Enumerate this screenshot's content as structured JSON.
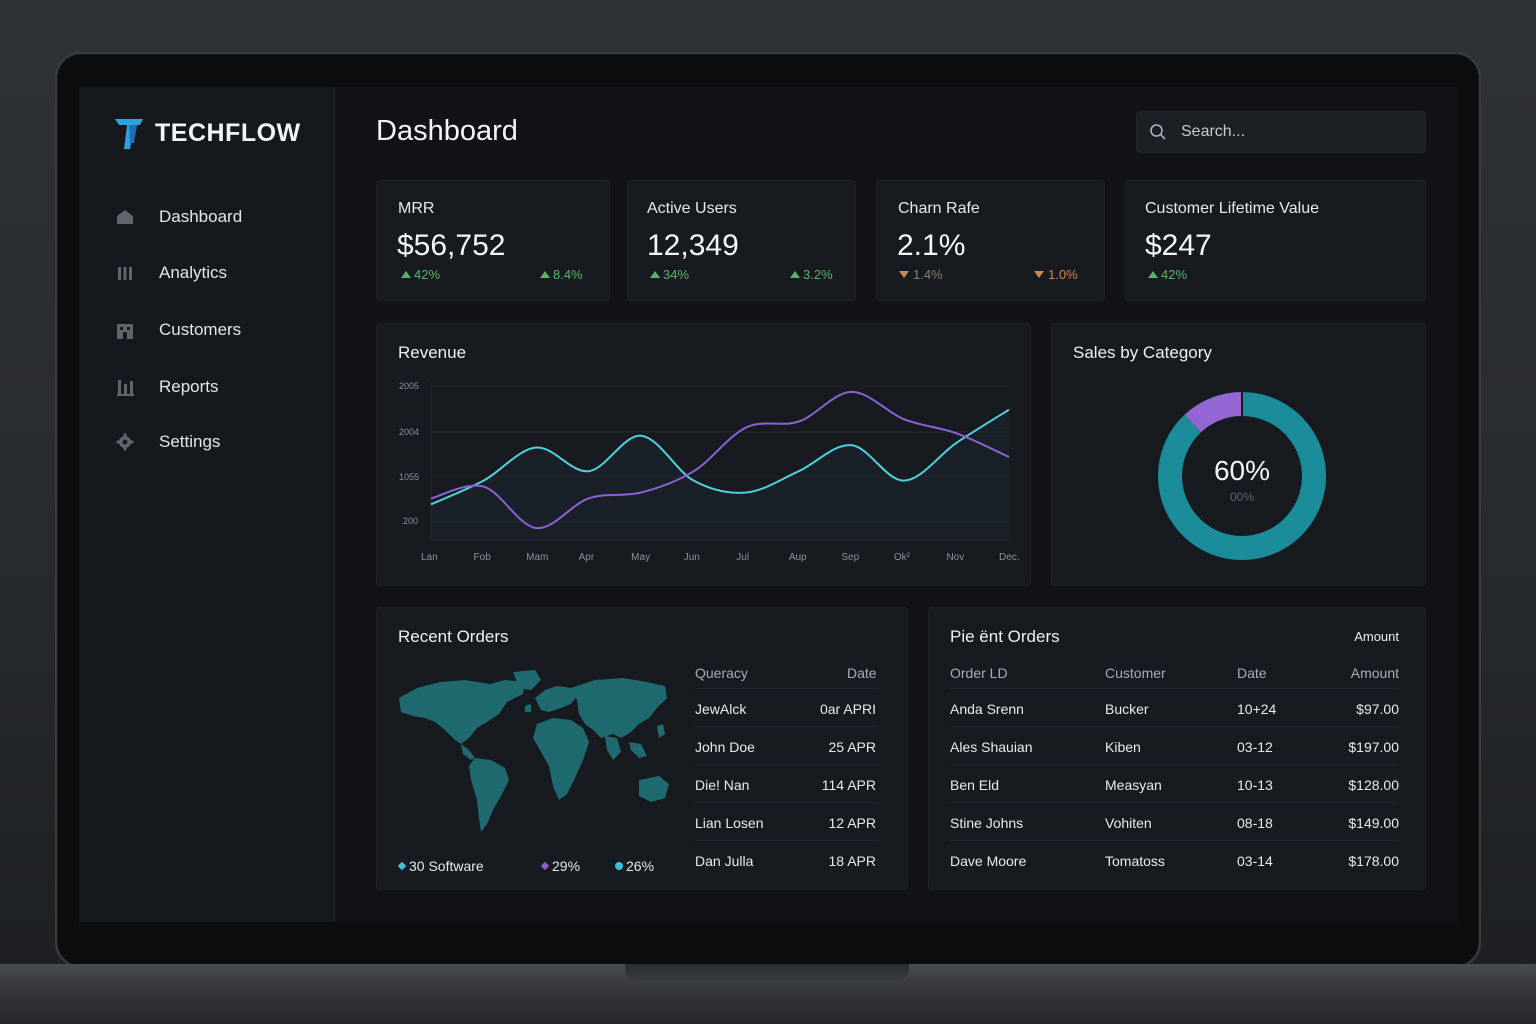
{
  "app": {
    "name": "TECHFLOW"
  },
  "sidebar": {
    "items": [
      {
        "label": "Dashboard",
        "icon": "home-icon"
      },
      {
        "label": "Analytics",
        "icon": "bars-icon"
      },
      {
        "label": "Customers",
        "icon": "building-icon"
      },
      {
        "label": "Reports",
        "icon": "bar-chart-icon"
      },
      {
        "label": "Settings",
        "icon": "gear-icon"
      }
    ]
  },
  "header": {
    "title": "Dashboard",
    "search_placeholder": "Search..."
  },
  "kpis": [
    {
      "label": "MRR",
      "value": "$56,752",
      "delta_left": "42%",
      "delta_right": "8.4%"
    },
    {
      "label": "Active Users",
      "value": "12,349",
      "delta_left": "34%",
      "delta_right": "3.2%"
    },
    {
      "label": "Charn Rafe",
      "value": "2.1%",
      "delta_left": "1.4%",
      "delta_right": "1.0%"
    },
    {
      "label": "Customer Lifetime Value",
      "value": "$247",
      "delta_left": "42%"
    }
  ],
  "revenue": {
    "title": "Revenue"
  },
  "chart_data": [
    {
      "type": "line",
      "title": "Revenue",
      "categories": [
        "Lan",
        "Fob",
        "Mam",
        "Apr",
        "May",
        "Jun",
        "Jul",
        "Aup",
        "Sep",
        "Ok²",
        "Nov",
        "Dec."
      ],
      "ytick_labels": [
        "2005",
        "2004",
        "1055",
        "200"
      ],
      "grid": true,
      "series": [
        {
          "color": "#4fd1de",
          "values": [
            0.2,
            0.4,
            0.68,
            0.48,
            0.78,
            0.4,
            0.3,
            0.48,
            0.7,
            0.4,
            0.72,
            1.0
          ]
        },
        {
          "color": "#8a62d6",
          "values": [
            0.25,
            0.35,
            0.0,
            0.25,
            0.3,
            0.48,
            0.85,
            0.9,
            1.15,
            0.92,
            0.8,
            0.6
          ]
        }
      ]
    },
    {
      "type": "pie",
      "title": "Sales by Category",
      "center_label": "60%",
      "center_sublabel": "00%",
      "slices": [
        {
          "value": 88,
          "color": "#1b8d9a"
        },
        {
          "value": 12,
          "color": "#9466d4"
        }
      ]
    }
  ],
  "recent_orders": {
    "title": "Recent Orders",
    "columns": [
      "Queracy",
      "Date"
    ],
    "rows": [
      [
        "JewAlck",
        "0ar APRI"
      ],
      [
        "John Doe",
        "25 APR"
      ],
      [
        "Die! Nan",
        "114 APR"
      ],
      [
        "Lian Losen",
        "12 APR"
      ],
      [
        "Dan Julla",
        "18 APR"
      ]
    ],
    "legend": [
      {
        "label": "30 Software",
        "color": "#3fc2d6"
      },
      {
        "label": "29%",
        "color": "#8a5fc9"
      },
      {
        "label": "26%",
        "color": "#37c0dc"
      }
    ]
  },
  "pie_orders": {
    "title": "Pie ënt Orders",
    "header_right": "Amount",
    "columns": [
      "Order LD",
      "Customer",
      "Date",
      "Amount"
    ],
    "rows": [
      [
        "Anda Srenn",
        "Bucker",
        "10+24",
        "$97.00"
      ],
      [
        "Ales Shauian",
        "Kiben",
        "03-12",
        "$197.00"
      ],
      [
        "Ben Eld",
        "Measyan",
        "10-13",
        "$128.00"
      ],
      [
        "Stine Johns",
        "Vohiten",
        "08-18",
        "$149.00"
      ],
      [
        "Dave Moore",
        "Tomatoss",
        "03-14",
        "$178.00"
      ]
    ]
  }
}
